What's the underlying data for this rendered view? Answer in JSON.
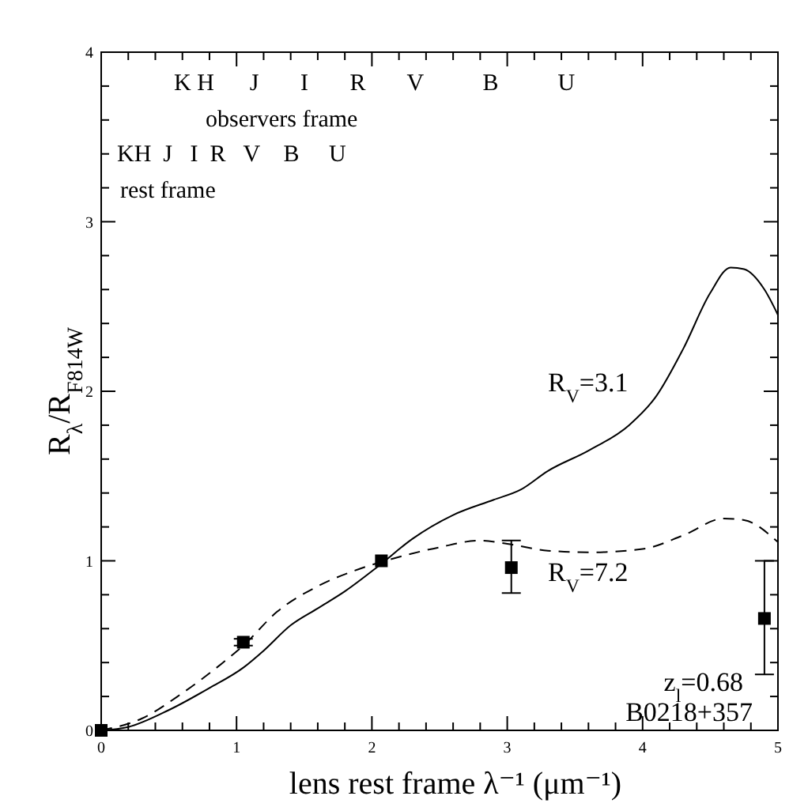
{
  "chart_data": {
    "type": "line",
    "xlabel": "lens rest frame λ⁻¹ (μm⁻¹)",
    "ylabel": "R$_{λ}$/R$_{F814W}$",
    "xlim": [
      0,
      5
    ],
    "ylim": [
      0,
      4
    ],
    "xticks": [
      0,
      {
        "value": 0.2,
        "label": null
      },
      {
        "value": 0.4,
        "label": null
      },
      {
        "value": 0.6,
        "label": null
      },
      {
        "value": 0.8,
        "label": null
      },
      1,
      {
        "value": 1.2,
        "label": null
      },
      {
        "value": 1.4,
        "label": null
      },
      {
        "value": 1.6,
        "label": null
      },
      {
        "value": 1.8,
        "label": null
      },
      2,
      {
        "value": 2.2,
        "label": null
      },
      {
        "value": 2.4,
        "label": null
      },
      {
        "value": 2.6,
        "label": null
      },
      {
        "value": 2.8,
        "label": null
      },
      3,
      {
        "value": 3.2,
        "label": null
      },
      {
        "value": 3.4,
        "label": null
      },
      {
        "value": 3.6,
        "label": null
      },
      {
        "value": 3.8,
        "label": null
      },
      4,
      {
        "value": 4.2,
        "label": null
      },
      {
        "value": 4.4,
        "label": null
      },
      {
        "value": 4.6,
        "label": null
      },
      {
        "value": 4.8,
        "label": null
      },
      5
    ],
    "yticks": [
      0,
      {
        "value": 0.2,
        "label": null
      },
      {
        "value": 0.4,
        "label": null
      },
      {
        "value": 0.6,
        "label": null
      },
      {
        "value": 0.8,
        "label": null
      },
      1,
      {
        "value": 1.2,
        "label": null
      },
      {
        "value": 1.4,
        "label": null
      },
      {
        "value": 1.6,
        "label": null
      },
      {
        "value": 1.8,
        "label": null
      },
      2,
      {
        "value": 2.2,
        "label": null
      },
      {
        "value": 2.4,
        "label": null
      },
      {
        "value": 2.6,
        "label": null
      },
      {
        "value": 2.8,
        "label": null
      },
      3,
      {
        "value": 3.2,
        "label": null
      },
      {
        "value": 3.4,
        "label": null
      },
      {
        "value": 3.6,
        "label": null
      },
      {
        "value": 3.8,
        "label": null
      },
      4
    ],
    "grid": false,
    "series": [
      {
        "name": "R$_{V}$=3.1",
        "line_style": "solid",
        "color": "#000000",
        "x": [
          0,
          0.2,
          0.5,
          0.8,
          1.05,
          1.2,
          1.4,
          1.6,
          1.8,
          2.05,
          2.3,
          2.6,
          2.9,
          3.1,
          3.3,
          3.6,
          3.9,
          4.1,
          4.3,
          4.5,
          4.65,
          4.75,
          4.9,
          5.0
        ],
        "values": [
          0,
          0.02,
          0.12,
          0.25,
          0.37,
          0.47,
          0.62,
          0.72,
          0.82,
          0.97,
          1.13,
          1.27,
          1.36,
          1.42,
          1.53,
          1.65,
          1.8,
          1.97,
          2.25,
          2.58,
          2.73,
          2.72,
          2.6,
          2.45
        ]
      },
      {
        "name": "R$_{V}$=7.2",
        "line_style": "dashed",
        "color": "#000000",
        "x": [
          0,
          0.3,
          0.6,
          0.9,
          1.05,
          1.3,
          1.6,
          1.9,
          2.1,
          2.5,
          2.8,
          3.0,
          3.3,
          3.6,
          4.0,
          4.3,
          4.6,
          4.75,
          5.0
        ],
        "values": [
          0,
          0.07,
          0.22,
          0.4,
          0.5,
          0.7,
          0.85,
          0.95,
          1.0,
          1.08,
          1.12,
          1.1,
          1.06,
          1.05,
          1.07,
          1.15,
          1.25,
          1.24,
          1.11
        ]
      },
      {
        "type": "scatter",
        "marker": "square",
        "color": "#000000",
        "x": [
          0,
          1.05,
          2.07,
          3.03,
          4.9
        ],
        "values": [
          0,
          0.52,
          1.0,
          0.96,
          0.66
        ],
        "errors": [
          null,
          0.02,
          null,
          [
            0.81,
            1.12
          ],
          [
            0.33,
            1.0
          ]
        ]
      }
    ],
    "annotations": [
      "K H      J       I       R       V          B          U",
      "observers frame",
      "KH  J   I  R   V    B     U",
      "rest frame",
      "z$_{l}$=0.68",
      "B0218+357"
    ]
  }
}
